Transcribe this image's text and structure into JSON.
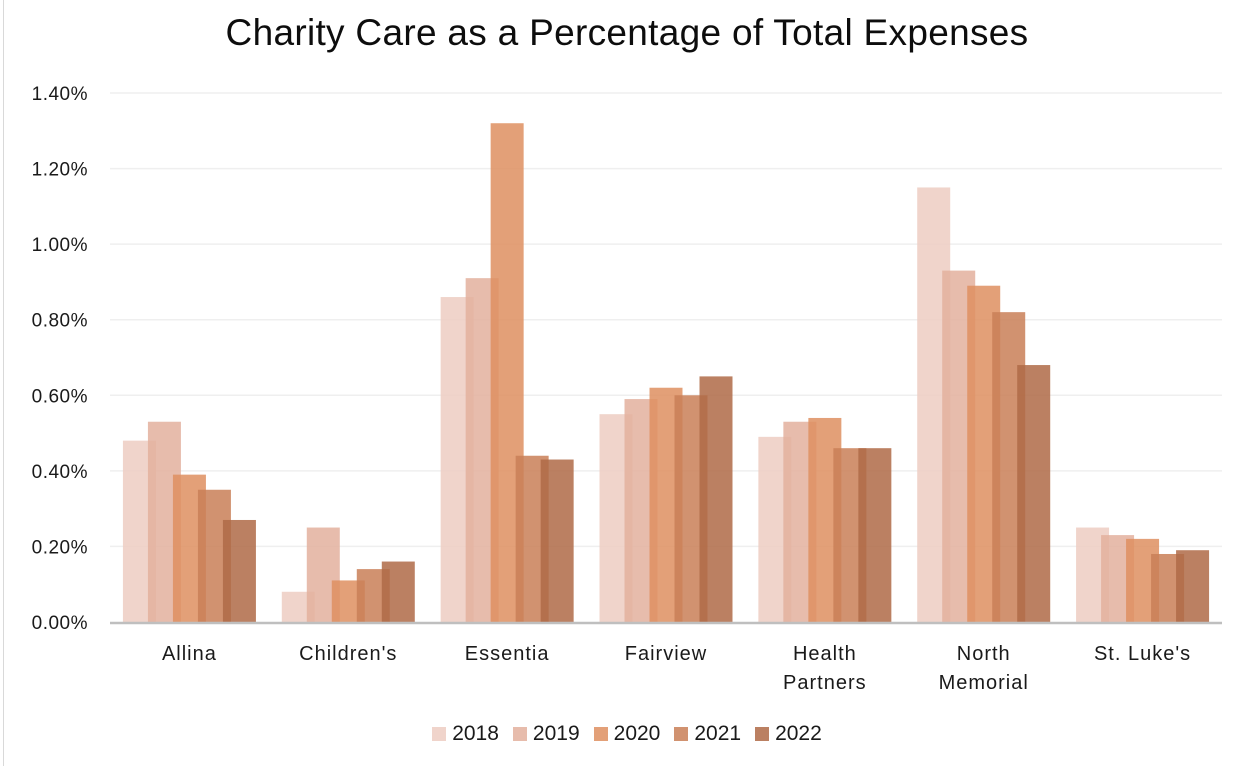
{
  "chart_data": {
    "type": "bar",
    "title": "Charity Care as a Percentage of Total Expenses",
    "xlabel": "",
    "ylabel": "",
    "ylim": [
      0,
      1.4
    ],
    "y_unit": "%",
    "y_ticks": [
      0,
      0.2,
      0.4,
      0.6,
      0.8,
      1.0,
      1.2,
      1.4
    ],
    "y_tick_labels": [
      "0.00%",
      "0.20%",
      "0.40%",
      "0.60%",
      "0.80%",
      "1.00%",
      "1.20%",
      "1.40%"
    ],
    "grid": true,
    "legend_position": "bottom",
    "categories": [
      [
        "Allina"
      ],
      [
        "Children's"
      ],
      [
        "Essentia"
      ],
      [
        "Fairview"
      ],
      [
        "Health",
        "Partners"
      ],
      [
        "North",
        "Memorial"
      ],
      [
        "St. Luke's"
      ]
    ],
    "series": [
      {
        "name": "2018",
        "color": "#EDCDC2",
        "values": [
          0.48,
          0.08,
          0.86,
          0.55,
          0.49,
          1.15,
          0.25
        ]
      },
      {
        "name": "2019",
        "color": "#E3B09E",
        "values": [
          0.53,
          0.25,
          0.91,
          0.59,
          0.53,
          0.93,
          0.23
        ]
      },
      {
        "name": "2020",
        "color": "#DE8F60",
        "values": [
          0.39,
          0.11,
          1.32,
          0.62,
          0.54,
          0.89,
          0.22
        ]
      },
      {
        "name": "2021",
        "color": "#C97F57",
        "values": [
          0.35,
          0.14,
          0.44,
          0.6,
          0.46,
          0.82,
          0.18
        ]
      },
      {
        "name": "2022",
        "color": "#AF6A47",
        "values": [
          0.27,
          0.16,
          0.43,
          0.65,
          0.46,
          0.68,
          0.19
        ]
      }
    ]
  }
}
